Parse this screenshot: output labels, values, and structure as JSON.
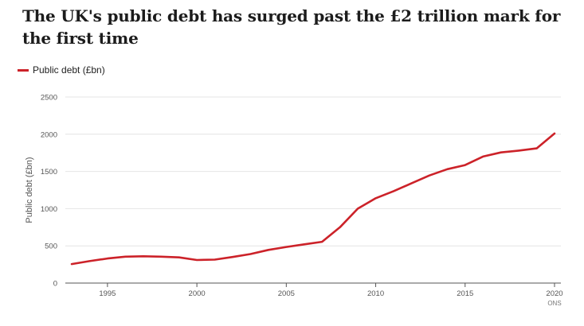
{
  "title": "The UK's public debt has surged past the £2 trillion mark for the first time",
  "source": "ONS",
  "colors": {
    "series": "#cc2229",
    "grid": "#e4e4e4",
    "axis": "#555555",
    "text": "#1c1c1c"
  },
  "chart_data": {
    "type": "line",
    "title": "The UK's public debt has surged past the £2 trillion mark for the first time",
    "xlabel": "",
    "ylabel": "Public debt (£bn)",
    "legend": "top-left",
    "grid": true,
    "xlim": [
      1993,
      2020
    ],
    "ylim": [
      0,
      2500
    ],
    "xticks": [
      "1995",
      "2000",
      "2005",
      "2010",
      "2015",
      "2020"
    ],
    "yticks": [
      "0",
      "500",
      "1000",
      "1500",
      "2000",
      "2500"
    ],
    "series": [
      {
        "name": "Public debt (£bn)",
        "x": [
          1993,
          1994,
          1995,
          1996,
          1997,
          1998,
          1999,
          2000,
          2001,
          2002,
          2003,
          2004,
          2005,
          2006,
          2007,
          2008,
          2009,
          2010,
          2011,
          2012,
          2013,
          2014,
          2015,
          2016,
          2017,
          2018,
          2019,
          2020
        ],
        "values": [
          255,
          295,
          330,
          355,
          360,
          355,
          345,
          310,
          315,
          350,
          390,
          445,
          485,
          520,
          555,
          750,
          1000,
          1140,
          1235,
          1340,
          1445,
          1530,
          1585,
          1700,
          1755,
          1780,
          1810,
          2010
        ]
      }
    ]
  }
}
